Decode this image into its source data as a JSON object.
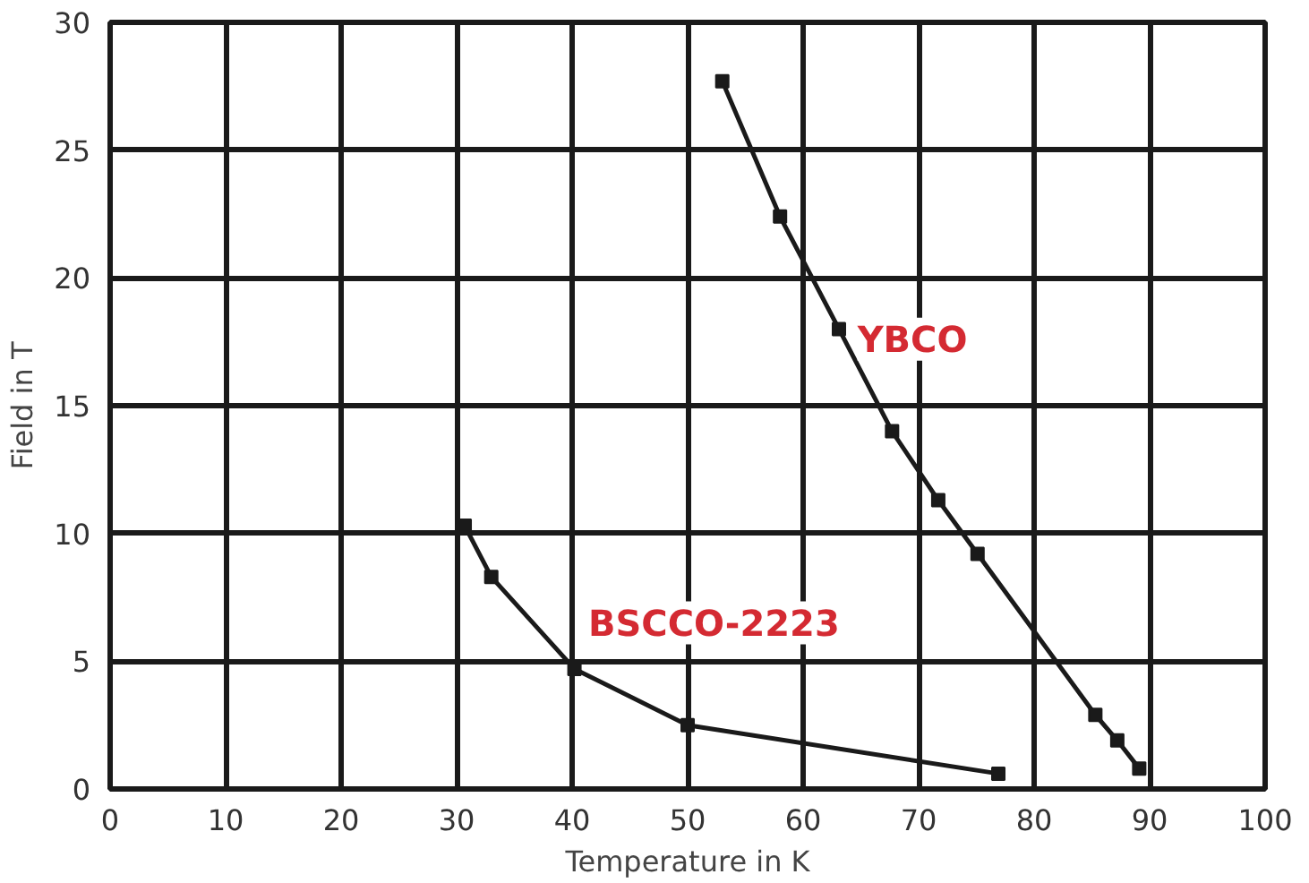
{
  "chart_data": {
    "type": "line",
    "xlabel": "Temperature in K",
    "ylabel": "Field in T",
    "xlim": [
      0,
      100
    ],
    "xticks": [
      0,
      10,
      20,
      30,
      40,
      50,
      60,
      70,
      80,
      90,
      100
    ],
    "ylim": [
      0,
      30
    ],
    "yticks": [
      0,
      5,
      10,
      15,
      20,
      25,
      30
    ],
    "grid": true,
    "marker": "square",
    "line_style": "solid",
    "series": [
      {
        "name": "YBCO",
        "color": "#1a1a1a",
        "x": [
          53.0,
          58.0,
          63.1,
          67.7,
          71.7,
          75.1,
          85.3,
          87.2,
          89.1
        ],
        "values": [
          27.7,
          22.4,
          18.0,
          14.0,
          11.3,
          9.2,
          2.9,
          1.9,
          0.8
        ]
      },
      {
        "name": "BSCCO-2223",
        "color": "#1a1a1a",
        "x": [
          30.7,
          33.0,
          40.2,
          50.0,
          76.9
        ],
        "values": [
          10.3,
          8.3,
          4.7,
          2.5,
          0.6
        ]
      }
    ]
  }
}
